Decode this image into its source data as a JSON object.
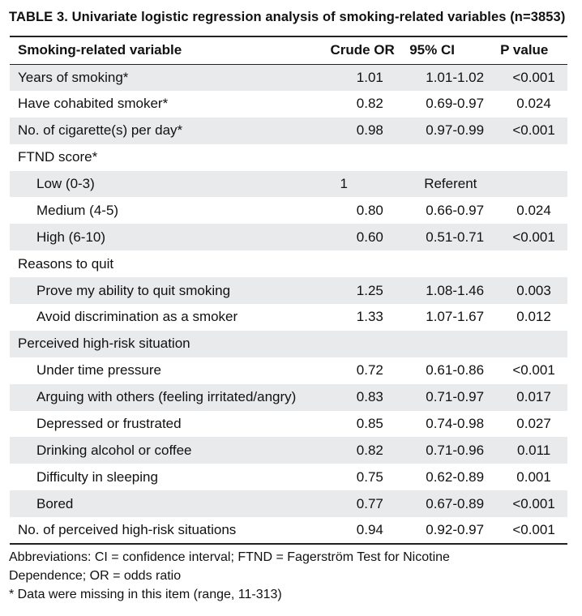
{
  "caption": {
    "label": "TABLE 3.",
    "title": "Univariate logistic regression analysis of smoking-related variables (n=3853)"
  },
  "headers": {
    "variable": "Smoking-related variable",
    "or": "Crude OR",
    "ci": "95% CI",
    "p": "P value"
  },
  "rows": [
    {
      "variable": "Years of smoking*",
      "or": "1.01",
      "ci": "1.01-1.02",
      "p": "<0.001",
      "indent": false,
      "shaded": true
    },
    {
      "variable": "Have cohabited smoker*",
      "or": "0.82",
      "ci": "0.69-0.97",
      "p": "0.024",
      "indent": false,
      "shaded": false
    },
    {
      "variable": "No. of cigarette(s) per day*",
      "or": "0.98",
      "ci": "0.97-0.99",
      "p": "<0.001",
      "indent": false,
      "shaded": true
    },
    {
      "variable": "FTND score*",
      "or": "",
      "ci": "",
      "p": "",
      "indent": false,
      "shaded": false
    },
    {
      "variable": "Low (0-3)",
      "or": "1",
      "ci": "Referent",
      "p": "",
      "indent": true,
      "shaded": true,
      "ref": true
    },
    {
      "variable": "Medium (4-5)",
      "or": "0.80",
      "ci": "0.66-0.97",
      "p": "0.024",
      "indent": true,
      "shaded": false
    },
    {
      "variable": "High (6-10)",
      "or": "0.60",
      "ci": "0.51-0.71",
      "p": "<0.001",
      "indent": true,
      "shaded": true
    },
    {
      "variable": "Reasons to quit",
      "or": "",
      "ci": "",
      "p": "",
      "indent": false,
      "shaded": false
    },
    {
      "variable": "Prove my ability to quit smoking",
      "or": "1.25",
      "ci": "1.08-1.46",
      "p": "0.003",
      "indent": true,
      "shaded": true
    },
    {
      "variable": "Avoid discrimination as a smoker",
      "or": "1.33",
      "ci": "1.07-1.67",
      "p": "0.012",
      "indent": true,
      "shaded": false
    },
    {
      "variable": "Perceived high-risk situation",
      "or": "",
      "ci": "",
      "p": "",
      "indent": false,
      "shaded": true
    },
    {
      "variable": "Under time pressure",
      "or": "0.72",
      "ci": "0.61-0.86",
      "p": "<0.001",
      "indent": true,
      "shaded": false
    },
    {
      "variable": "Arguing with others (feeling irritated/angry)",
      "or": "0.83",
      "ci": "0.71-0.97",
      "p": "0.017",
      "indent": true,
      "shaded": true
    },
    {
      "variable": "Depressed or frustrated",
      "or": "0.85",
      "ci": "0.74-0.98",
      "p": "0.027",
      "indent": true,
      "shaded": false
    },
    {
      "variable": "Drinking alcohol or coffee",
      "or": "0.82",
      "ci": "0.71-0.96",
      "p": "0.011",
      "indent": true,
      "shaded": true
    },
    {
      "variable": "Difficulty in sleeping",
      "or": "0.75",
      "ci": "0.62-0.89",
      "p": "0.001",
      "indent": true,
      "shaded": false
    },
    {
      "variable": "Bored",
      "or": "0.77",
      "ci": "0.67-0.89",
      "p": "<0.001",
      "indent": true,
      "shaded": true
    },
    {
      "variable": "No. of perceived high-risk situations",
      "or": "0.94",
      "ci": "0.92-0.97",
      "p": "<0.001",
      "indent": false,
      "shaded": false
    }
  ],
  "notes": {
    "abbrev_line1": "Abbreviations: CI = confidence interval; FTND =  Fagerström Test for Nicotine",
    "abbrev_line2": "Dependence; OR = odds ratio",
    "footnote": "*   Data were missing in this item (range, 11-313)"
  },
  "colors": {
    "shade": "#e9eaec",
    "rule": "#222222"
  }
}
